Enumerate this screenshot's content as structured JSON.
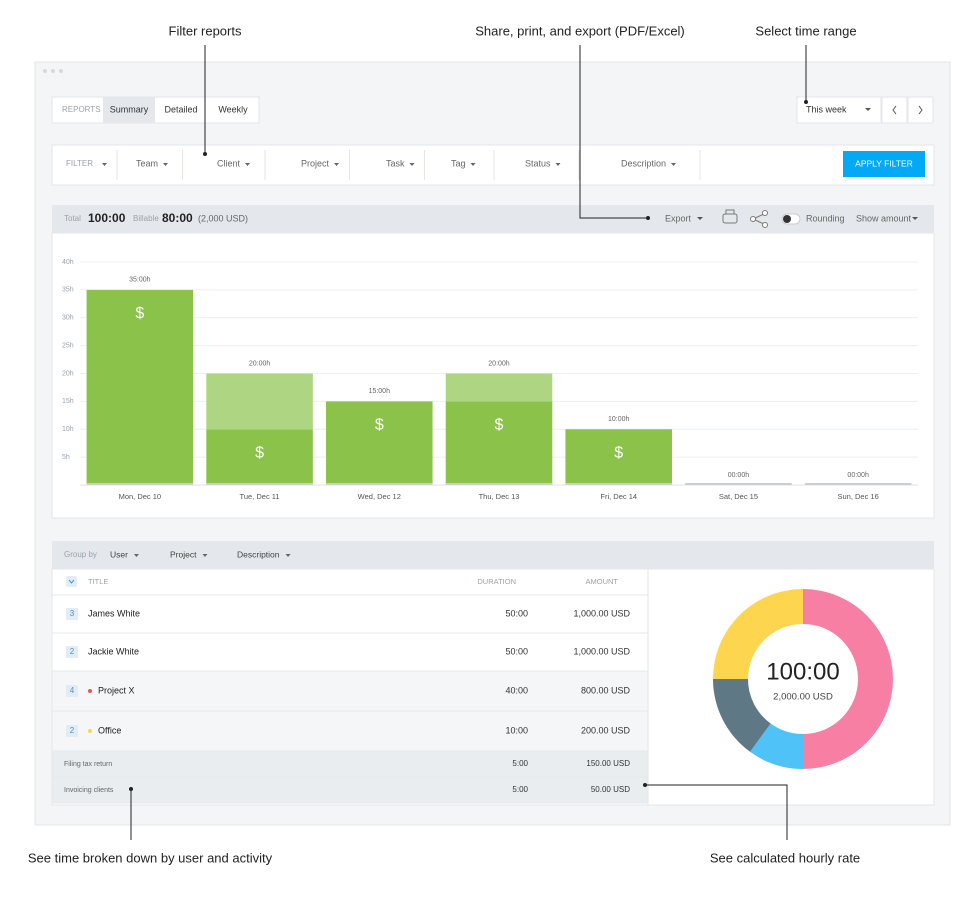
{
  "annotations": {
    "filter": "Filter reports",
    "export": "Share, print, and export (PDF/Excel)",
    "time_range": "Select time range",
    "breakdown": "See time broken down by user and activity",
    "hourly_rate": "See calculated hourly rate"
  },
  "tabs": {
    "label": "REPORTS",
    "items": [
      "Summary",
      "Detailed",
      "Weekly"
    ]
  },
  "time_range": "This week",
  "filters": {
    "label": "FILTER",
    "items": [
      "Team",
      "Client",
      "Project",
      "Task",
      "Tag",
      "Status",
      "Description"
    ],
    "apply": "APPLY FILTER"
  },
  "summary": {
    "total_label": "Total",
    "total": "100:00",
    "billable_label": "Billable",
    "billable": "80:00",
    "amount": "(2,000 USD)",
    "export": "Export",
    "rounding": "Rounding",
    "show_amount": "Show amount"
  },
  "chart_data": [
    {
      "type": "bar",
      "stacked": true,
      "categories": [
        "Mon, Dec 10",
        "Tue, Dec 11",
        "Wed, Dec 12",
        "Thu, Dec 13",
        "Fri, Dec 14",
        "Sat, Dec 15",
        "Sun, Dec 16"
      ],
      "series": [
        {
          "color": "#8bc34a",
          "values": [
            35,
            10,
            15,
            15,
            10,
            0,
            0
          ]
        },
        {
          "color": "#aed581",
          "values": [
            0,
            10,
            0,
            5,
            0,
            0,
            0
          ]
        }
      ],
      "total_labels": [
        "35:00h",
        "20:00h",
        "15:00h",
        "20:00h",
        "10:00h",
        "00:00h",
        "00:00h"
      ],
      "bar_icon": "$",
      "ylim": [
        0,
        40
      ],
      "yticks": [
        {
          "value": 5,
          "label": "5h"
        },
        {
          "value": 10,
          "label": "10h"
        },
        {
          "value": 15,
          "label": "15h"
        },
        {
          "value": 20,
          "label": "20h"
        },
        {
          "value": 25,
          "label": "25h"
        },
        {
          "value": 30,
          "label": "30h"
        },
        {
          "value": 35,
          "label": "35h"
        },
        {
          "value": 40,
          "label": "40h"
        }
      ],
      "grid": true
    },
    {
      "type": "pie",
      "donut": true,
      "center_label": "100:00",
      "center_sublabel": "2,000.00 USD",
      "values": [
        50,
        10,
        15,
        25
      ],
      "colors": [
        "#f77fa4",
        "#4fc3f7",
        "#5f7886",
        "#fdd54f"
      ]
    }
  ],
  "group_by": {
    "label": "Group by",
    "items": [
      "User",
      "Project",
      "Description"
    ]
  },
  "table": {
    "columns": [
      "TITLE",
      "DURATION",
      "AMOUNT"
    ],
    "rows": [
      {
        "count": "3",
        "title": "James White",
        "duration": "50:00",
        "amount": "1,000.00 USD"
      },
      {
        "count": "2",
        "title": "Jackie White",
        "duration": "50:00",
        "amount": "1,000.00 USD"
      },
      {
        "count": "4",
        "dot_color": "#ef5350",
        "title": "Project X",
        "duration": "40:00",
        "amount": "800.00 USD"
      },
      {
        "count": "2",
        "dot_color": "#fdd54f",
        "title": "Office",
        "duration": "10:00",
        "amount": "200.00 USD"
      },
      {
        "title": "Filing tax return",
        "duration": "5:00",
        "amount": "150.00 USD"
      },
      {
        "title": "Invoicing clients",
        "duration": "5:00",
        "amount": "50.00 USD"
      }
    ]
  }
}
